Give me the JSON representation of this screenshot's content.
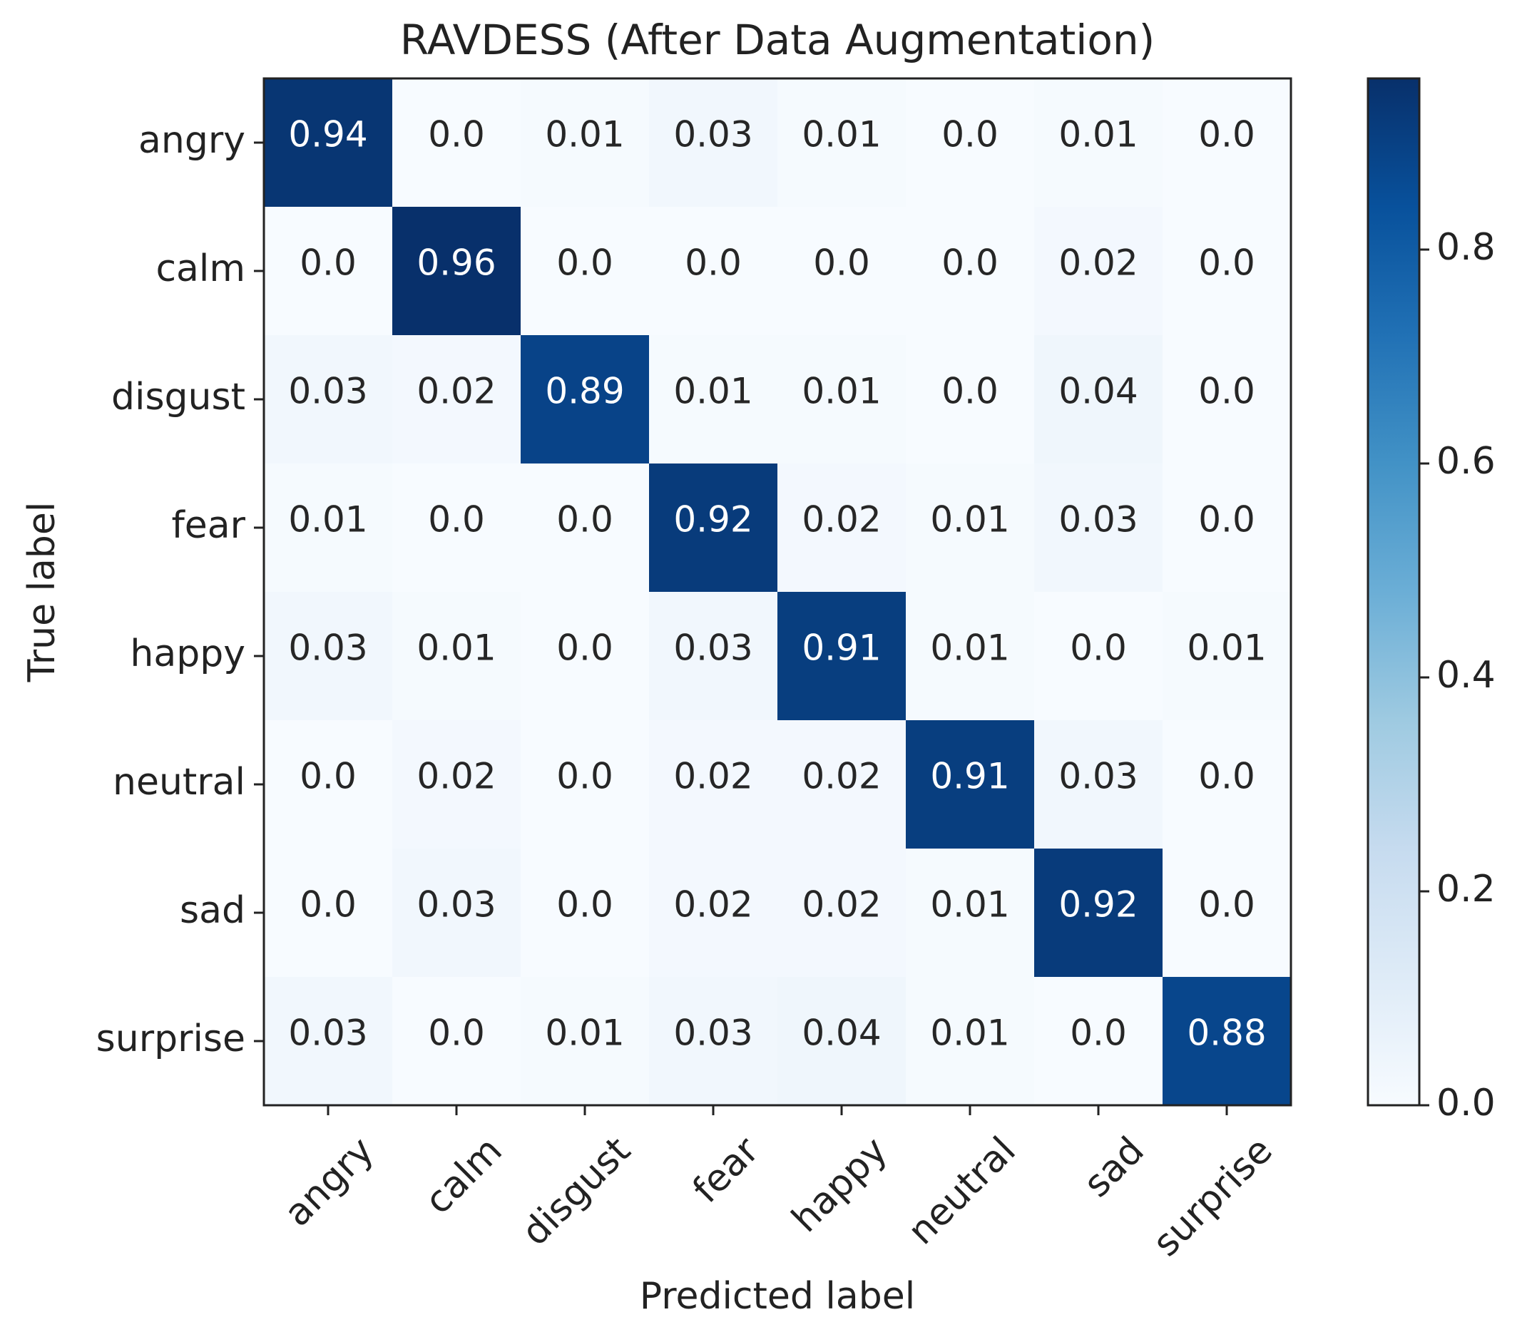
{
  "chart_data": {
    "type": "heatmap",
    "title": "RAVDESS (After Data Augmentation)",
    "xlabel": "Predicted label",
    "ylabel": "True label",
    "x_categories": [
      "angry",
      "calm",
      "disgust",
      "fear",
      "happy",
      "neutral",
      "sad",
      "surprise"
    ],
    "y_categories": [
      "angry",
      "calm",
      "disgust",
      "fear",
      "happy",
      "neutral",
      "sad",
      "surprise"
    ],
    "values": [
      [
        0.94,
        0.0,
        0.01,
        0.03,
        0.01,
        0.0,
        0.01,
        0.0
      ],
      [
        0.0,
        0.96,
        0.0,
        0.0,
        0.0,
        0.0,
        0.02,
        0.0
      ],
      [
        0.03,
        0.02,
        0.89,
        0.01,
        0.01,
        0.0,
        0.04,
        0.0
      ],
      [
        0.01,
        0.0,
        0.0,
        0.92,
        0.02,
        0.01,
        0.03,
        0.0
      ],
      [
        0.03,
        0.01,
        0.0,
        0.03,
        0.91,
        0.01,
        0.0,
        0.01
      ],
      [
        0.0,
        0.02,
        0.0,
        0.02,
        0.02,
        0.91,
        0.03,
        0.0
      ],
      [
        0.0,
        0.03,
        0.0,
        0.02,
        0.02,
        0.01,
        0.92,
        0.0
      ],
      [
        0.03,
        0.0,
        0.01,
        0.03,
        0.04,
        0.01,
        0.0,
        0.88
      ]
    ],
    "colorbar": {
      "range": [
        0.0,
        0.96
      ],
      "ticks": [
        "0.0",
        "0.2",
        "0.4",
        "0.6",
        "0.8"
      ],
      "tick_values": [
        0.0,
        0.2,
        0.4,
        0.6,
        0.8
      ],
      "colormap": "Blues"
    },
    "colors": {
      "low": "#f7fbff",
      "high": "#08306b",
      "text_dark": "#262626",
      "text_light": "#ffffff"
    }
  }
}
